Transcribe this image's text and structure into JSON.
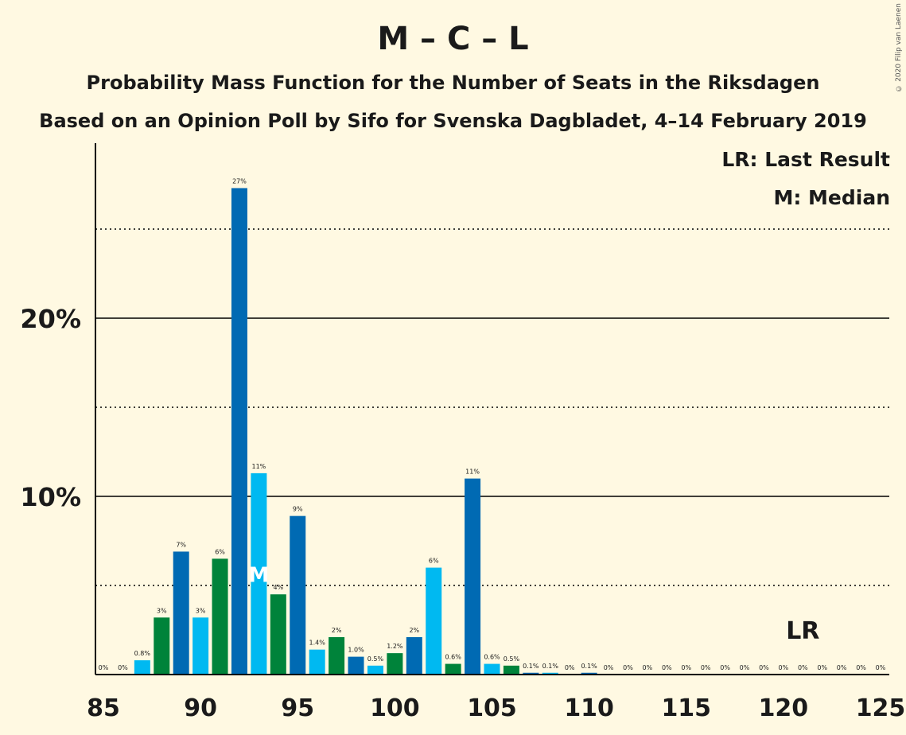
{
  "title": "M – C – L",
  "subtitle": "Probability Mass Function for the Number of Seats in the Riksdagen",
  "subtitle2": "Based on an Opinion Poll by Sifo for Svenska Dagbladet, 4–14 February 2019",
  "legend": {
    "last_result": "LR: Last Result",
    "median": "M: Median"
  },
  "copyright": "© 2020 Filip van Laenen",
  "colors": {
    "background": "#FFF9E2",
    "light_blue": "#00B9F1",
    "dark_blue": "#006AB3",
    "green": "#00833A",
    "axis": "#000000"
  },
  "chart_data": {
    "type": "bar",
    "x": [
      85,
      86,
      87,
      88,
      89,
      90,
      91,
      92,
      93,
      94,
      95,
      96,
      97,
      98,
      99,
      100,
      101,
      102,
      103,
      104,
      105,
      106,
      107,
      108,
      109,
      110,
      111,
      112,
      113,
      114,
      115,
      116,
      117,
      118,
      119,
      120,
      121,
      122,
      123,
      124,
      125
    ],
    "values": [
      0,
      0,
      0.8,
      3.2,
      6.9,
      3.2,
      6.5,
      27.3,
      11.3,
      4.5,
      8.9,
      1.4,
      2.1,
      1.0,
      0.5,
      1.2,
      2.1,
      6.0,
      0.6,
      11.0,
      0.6,
      0.5,
      0.1,
      0.1,
      0,
      0.1,
      0,
      0,
      0,
      0,
      0,
      0,
      0,
      0,
      0,
      0,
      0,
      0,
      0,
      0,
      0
    ],
    "labels": [
      "0%",
      "0%",
      "0.8%",
      "3%",
      "7%",
      "3%",
      "6%",
      "27%",
      "11%",
      "4%",
      "9%",
      "1.4%",
      "2%",
      "1.0%",
      "0.5%",
      "1.2%",
      "2%",
      "6%",
      "0.6%",
      "11%",
      "0.6%",
      "0.5%",
      "0.1%",
      "0.1%",
      "0%",
      "0.1%",
      "0%",
      "0%",
      "0%",
      "0%",
      "0%",
      "0%",
      "0%",
      "0%",
      "0%",
      "0%",
      "0%",
      "0%",
      "0%",
      "0%",
      "0%"
    ],
    "bar_colors": [
      "dark_blue",
      "light_blue",
      "light_blue",
      "green",
      "dark_blue",
      "light_blue",
      "green",
      "dark_blue",
      "light_blue",
      "green",
      "dark_blue",
      "light_blue",
      "green",
      "dark_blue",
      "light_blue",
      "green",
      "dark_blue",
      "light_blue",
      "green",
      "dark_blue",
      "light_blue",
      "green",
      "dark_blue",
      "light_blue",
      "green",
      "dark_blue",
      "light_blue",
      "green",
      "dark_blue",
      "light_blue",
      "green",
      "dark_blue",
      "light_blue",
      "green",
      "dark_blue",
      "light_blue",
      "green",
      "dark_blue",
      "light_blue",
      "green",
      "dark_blue"
    ],
    "x_ticks": [
      85,
      90,
      95,
      100,
      105,
      110,
      115,
      120,
      125
    ],
    "y_ticks": [
      10,
      20
    ],
    "y_tick_labels": [
      "10%",
      "20%"
    ],
    "y_gridlines_solid": [
      10,
      20
    ],
    "y_gridlines_dotted": [
      5,
      15,
      25
    ],
    "ylim": [
      0,
      29
    ],
    "median": {
      "x": 93,
      "label": "M"
    },
    "last_result": {
      "x": 121,
      "label": "LR"
    }
  }
}
